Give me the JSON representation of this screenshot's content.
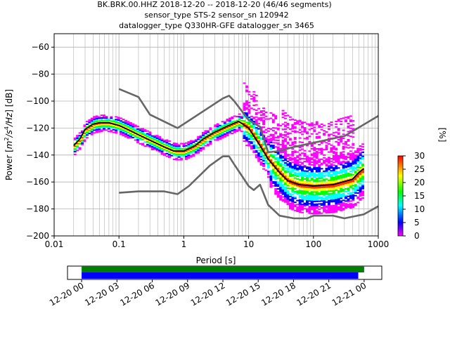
{
  "chart_data": [
    {
      "type": "heatmap",
      "title": [
        "BK.BRK.00.HHZ   2018-12-20 -- 2018-12-20  (46/46 segments)",
        "sensor_type STS-2 sensor_sn 120942",
        "datalogger_type Q330HR-GFE datalogger_sn 3465"
      ],
      "xlabel": "Period [s]",
      "ylabel": "Power [$m^2/s^4/Hz$] [dB]",
      "ylabel_parts": [
        "Power [",
        "m",
        "2",
        "/s",
        "4",
        "/Hz",
        "] [dB]"
      ],
      "xscale": "log",
      "xlim": [
        0.01,
        1000
      ],
      "ylim": [
        -200,
        -50
      ],
      "xticks": [
        0.01,
        0.1,
        1,
        10,
        100,
        1000
      ],
      "xtick_labels": [
        "0.01",
        "0.1",
        "1",
        "10",
        "100",
        "1000"
      ],
      "yticks": [
        -200,
        -180,
        -160,
        -140,
        -120,
        -100,
        -80,
        -60
      ],
      "ytick_labels": [
        "−200",
        "−180",
        "−160",
        "−140",
        "−120",
        "−100",
        "−80",
        "−60"
      ],
      "grid": true,
      "colorbar": {
        "label": "[%]",
        "ticks": [
          0,
          5,
          10,
          15,
          20,
          25,
          30
        ],
        "colors": [
          "#ff00ff",
          "#0000ff",
          "#00ffff",
          "#00ff00",
          "#ffff00",
          "#ff0000"
        ]
      },
      "series": [
        {
          "name": "",
          "color": "#000000",
          "x": [
            0.02,
            0.025,
            0.03,
            0.04,
            0.05,
            0.07,
            0.1,
            0.15,
            0.2,
            0.3,
            0.5,
            0.7,
            1.0,
            1.5,
            2.0,
            3.0,
            5.0,
            7.0,
            10,
            15,
            20,
            30,
            40,
            60,
            100,
            200,
            400,
            500,
            600
          ],
          "y": [
            -133,
            -128,
            -121,
            -117,
            -116,
            -116,
            -118,
            -122,
            -125,
            -129,
            -134,
            -137,
            -137,
            -133,
            -128,
            -123,
            -118,
            -115,
            -120,
            -133,
            -143,
            -153,
            -159,
            -162,
            -163,
            -162,
            -158,
            -153,
            -150
          ]
        },
        {
          "name": "",
          "color": "#666666",
          "x": [
            0.1,
            0.2,
            0.3,
            0.8,
            4.0,
            5.0,
            6.0,
            10,
            15,
            20,
            30,
            50,
            300,
            1000
          ],
          "y": [
            -91,
            -97,
            -110,
            -120,
            -98,
            -96,
            -100,
            -114,
            -119,
            -138,
            -137,
            -134,
            -126,
            -111
          ]
        },
        {
          "name": "",
          "color": "#666666",
          "x": [
            0.1,
            0.2,
            0.5,
            0.8,
            1.2,
            2.5,
            4.0,
            5.0,
            6.0,
            8.0,
            10,
            12,
            15,
            20,
            30,
            50,
            80,
            100,
            200,
            300,
            600,
            1000
          ],
          "y": [
            -168,
            -167,
            -167,
            -169,
            -163,
            -148,
            -141,
            -141,
            -147,
            -156,
            -163,
            -166,
            -162,
            -177,
            -185,
            -187,
            -187,
            -185,
            -185,
            -187,
            -184,
            -178
          ]
        }
      ]
    },
    {
      "type": "bar",
      "xtick_labels": [
        "12-20 00",
        "12-20 03",
        "12-20 06",
        "12-20 09",
        "12-20 12",
        "12-20 15",
        "12-20 18",
        "12-20 21",
        "12-21 00"
      ],
      "xlim_hours": [
        -1.2,
        25.5
      ],
      "series": [
        {
          "name": "",
          "color": "#008000",
          "start_hour": 0,
          "end_hour": 24.0
        },
        {
          "name": "",
          "color": "#0000ff",
          "start_hour": 0,
          "end_hour": 23.5
        }
      ]
    }
  ]
}
